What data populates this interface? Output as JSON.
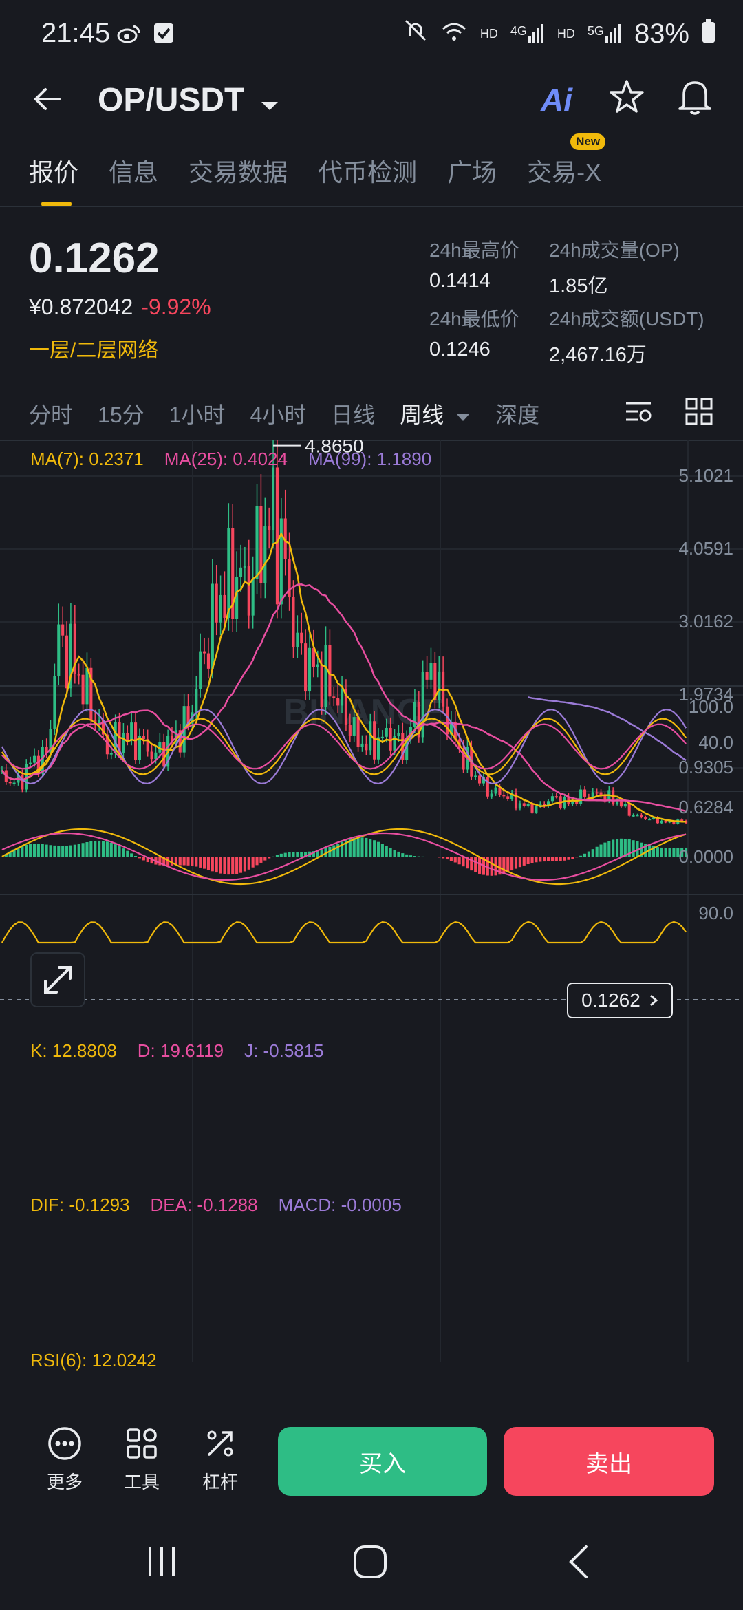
{
  "status_bar": {
    "time": "21:45",
    "network_hd1": "HD",
    "network_4g": "4G",
    "network_hd2": "HD",
    "network_5g": "5G",
    "battery": "83%"
  },
  "header": {
    "pair": "OP/USDT",
    "ai_label": "Ai"
  },
  "tabs": [
    {
      "label": "报价",
      "active": true
    },
    {
      "label": "信息"
    },
    {
      "label": "交易数据"
    },
    {
      "label": "代币检测"
    },
    {
      "label": "广场"
    },
    {
      "label": "交易-X",
      "badge": "New"
    }
  ],
  "price": {
    "last": "0.1262",
    "cny": "¥0.872042",
    "change": "-9.92%",
    "network": "一层/二层网络",
    "high_label": "24h最高价",
    "high_value": "0.1414",
    "low_label": "24h最低价",
    "low_value": "0.1246",
    "vol_op_label": "24h成交量(OP)",
    "vol_op_value": "1.85亿",
    "vol_usdt_label": "24h成交额(USDT)",
    "vol_usdt_value": "2,467.16万"
  },
  "intervals": [
    "分时",
    "15分",
    "1小时",
    "4小时",
    "日线",
    "周线",
    "深度"
  ],
  "indicators": {
    "ma7": "MA(7): 0.2371",
    "ma25": "MA(25): 0.4024",
    "ma99": "MA(99): 1.1890",
    "kdj_k": "K: 12.8808",
    "kdj_d": "D: 19.6119",
    "kdj_j": "J: -0.5815",
    "macd_dif": "DIF: -0.1293",
    "macd_dea": "DEA: -0.1288",
    "macd_val": "MACD: -0.0005",
    "rsi": "RSI(6): 12.0242"
  },
  "chart_data": {
    "type": "candlestick",
    "watermark": "BINANCE",
    "price_axis": [
      "5.1021",
      "4.0591",
      "3.0162",
      "1.9734",
      "0.9305"
    ],
    "max_label": "4.8650",
    "current_price_tag": "0.1262",
    "kdj_axis": [
      "100.0",
      "40.0"
    ],
    "macd_axis": [
      "0.6284",
      "0.0000"
    ],
    "rsi_axis": [
      "90.0"
    ],
    "colors": {
      "up": "#2ebd85",
      "down": "#f6465d",
      "ma7": "#f0b90b",
      "ma25": "#e84ea0",
      "ma99": "#9a7ad6"
    }
  },
  "bottom_bar": {
    "more": "更多",
    "tools": "工具",
    "leverage": "杠杆",
    "buy": "买入",
    "sell": "卖出"
  },
  "colors": {
    "accent": "#f0b90b",
    "buy": "#2ebd85",
    "sell": "#f6465d",
    "bg": "#181a20"
  }
}
